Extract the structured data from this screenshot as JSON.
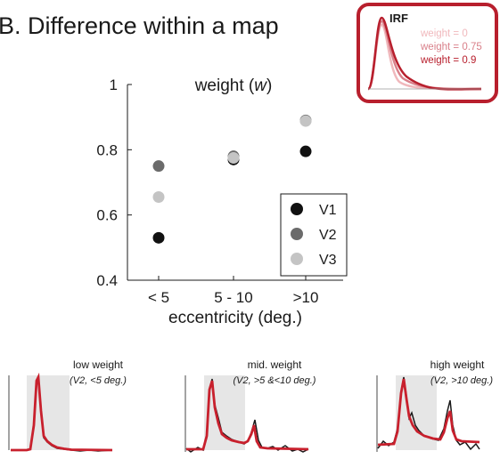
{
  "panel_title": "B. Difference within a map",
  "inset": {
    "title": "IRF",
    "entries": [
      {
        "label": "weight = 0",
        "color": "#f0b8bc"
      },
      {
        "label": "weight = 0.75",
        "color": "#d9808a"
      },
      {
        "label": "weight = 0.9",
        "color": "#b81f2d"
      }
    ],
    "frame_color": "#b81f2d"
  },
  "chart_data": {
    "type": "scatter",
    "title_prefix": "weight (",
    "title_var": "w",
    "title_suffix": ")",
    "xlabel": "eccentricity (deg.)",
    "categories": [
      "< 5",
      "5 - 10",
      ">10"
    ],
    "ylim": [
      0.4,
      1.0
    ],
    "yticks": [
      "0.4",
      "0.6",
      "0.8",
      "1"
    ],
    "ytick_values": [
      0.4,
      0.6,
      0.8,
      1.0
    ],
    "legend_position": "right",
    "series": [
      {
        "name": "V1",
        "color": "#111111",
        "values": [
          0.53,
          0.77,
          0.795
        ]
      },
      {
        "name": "V2",
        "color": "#6b6b6b",
        "values": [
          0.75,
          0.78,
          0.89
        ]
      },
      {
        "name": "V3",
        "color": "#c4c4c4",
        "values": [
          0.655,
          0.775,
          0.888
        ]
      }
    ]
  },
  "examples": [
    {
      "label": "low weight",
      "sub": "(V2, <5 deg.)"
    },
    {
      "label": "mid. weight",
      "sub": "(V2, >5 &<10 deg.)"
    },
    {
      "label": "high weight",
      "sub": "(V2, >10 deg.)"
    }
  ],
  "colors": {
    "fit": "#c8202d",
    "data": "#1a1a1a",
    "stim": "#e6e6e6"
  }
}
